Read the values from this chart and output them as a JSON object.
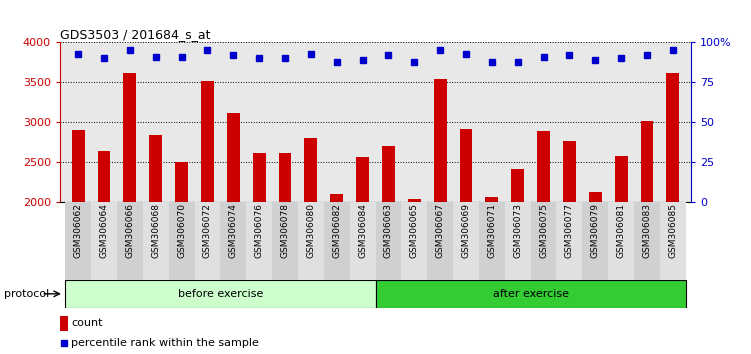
{
  "title": "GDS3503 / 201684_s_at",
  "samples": [
    "GSM306062",
    "GSM306064",
    "GSM306066",
    "GSM306068",
    "GSM306070",
    "GSM306072",
    "GSM306074",
    "GSM306076",
    "GSM306078",
    "GSM306080",
    "GSM306082",
    "GSM306084",
    "GSM306063",
    "GSM306065",
    "GSM306067",
    "GSM306069",
    "GSM306071",
    "GSM306073",
    "GSM306075",
    "GSM306077",
    "GSM306079",
    "GSM306081",
    "GSM306083",
    "GSM306085"
  ],
  "counts": [
    2900,
    2640,
    3620,
    2840,
    2500,
    3520,
    3110,
    2610,
    2610,
    2800,
    2100,
    2560,
    2700,
    2040,
    3540,
    2920,
    2060,
    2410,
    2890,
    2760,
    2120,
    2570,
    3020,
    3620
  ],
  "percentile_ranks": [
    93,
    90,
    95,
    91,
    91,
    95,
    92,
    90,
    90,
    93,
    88,
    89,
    92,
    88,
    95,
    93,
    88,
    88,
    91,
    92,
    89,
    90,
    92,
    95
  ],
  "n_before": 12,
  "n_after": 12,
  "before_label": "before exercise",
  "after_label": "after exercise",
  "protocol_label": "protocol",
  "ylim_left": [
    2000,
    4000
  ],
  "ylim_right": [
    0,
    100
  ],
  "yticks_left": [
    2000,
    2500,
    3000,
    3500,
    4000
  ],
  "yticks_right": [
    0,
    25,
    50,
    75,
    100
  ],
  "bar_color": "#cc0000",
  "dot_color": "#0000cc",
  "before_color": "#ccffcc",
  "after_color": "#33cc33",
  "bg_color": "#e8e8e8",
  "legend_count_label": "count",
  "legend_pct_label": "percentile rank within the sample"
}
